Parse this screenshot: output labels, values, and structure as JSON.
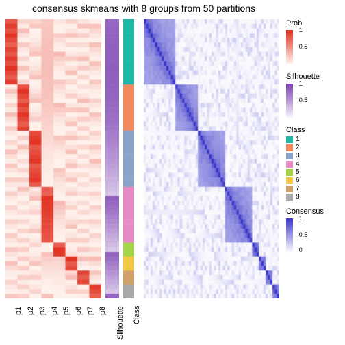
{
  "title": "consensus skmeans with 8 groups from 50 partitions",
  "n_rows": 60,
  "prob_columns": [
    "p1",
    "p2",
    "p3",
    "p4",
    "p5",
    "p6",
    "p7",
    "p8"
  ],
  "sil_label": "Silhouette",
  "class_label": "Class",
  "class_colors": [
    "#1fb8a6",
    "#f28a5e",
    "#8aa4c8",
    "#e88bc4",
    "#a4d24a",
    "#f2c744",
    "#d0a26a",
    "#a8a8a8"
  ],
  "class_breaks": [
    14,
    24,
    36,
    48,
    51,
    54,
    57,
    60
  ],
  "prob_color_low": "#fff5f0",
  "prob_color_high": "#e03020",
  "sil_color_low": "#f7f5fb",
  "sil_color_high": "#7a3fb0",
  "cons_color_low": "#ffffff",
  "cons_color_high": "#3a36c8",
  "background_color": "#ffffff",
  "legends": {
    "prob": {
      "label": "Prob",
      "ticks": [
        "1",
        "0.5",
        ""
      ]
    },
    "sil": {
      "label": "Silhouette",
      "ticks": [
        "1",
        "0.5",
        ""
      ]
    },
    "class": {
      "label": "Class",
      "items": [
        "1",
        "2",
        "3",
        "4",
        "5",
        "6",
        "7",
        "8"
      ]
    },
    "consensus": {
      "label": "Consensus",
      "ticks": [
        "1",
        "0.5",
        "0"
      ]
    }
  },
  "styling": {
    "title_fontsize": 14,
    "tick_fontsize": 11,
    "legend_fontsize": 10
  },
  "prob_matrix_note": "each row has ~1 dominant column matching its class; off-diagonal ~0.05–0.3",
  "silhouette_range": [
    0.15,
    0.95
  ],
  "consensus_note": "block-diagonal: within-class ~0.5–1.0 gradient, diag=1, between-class ~0–0.25"
}
